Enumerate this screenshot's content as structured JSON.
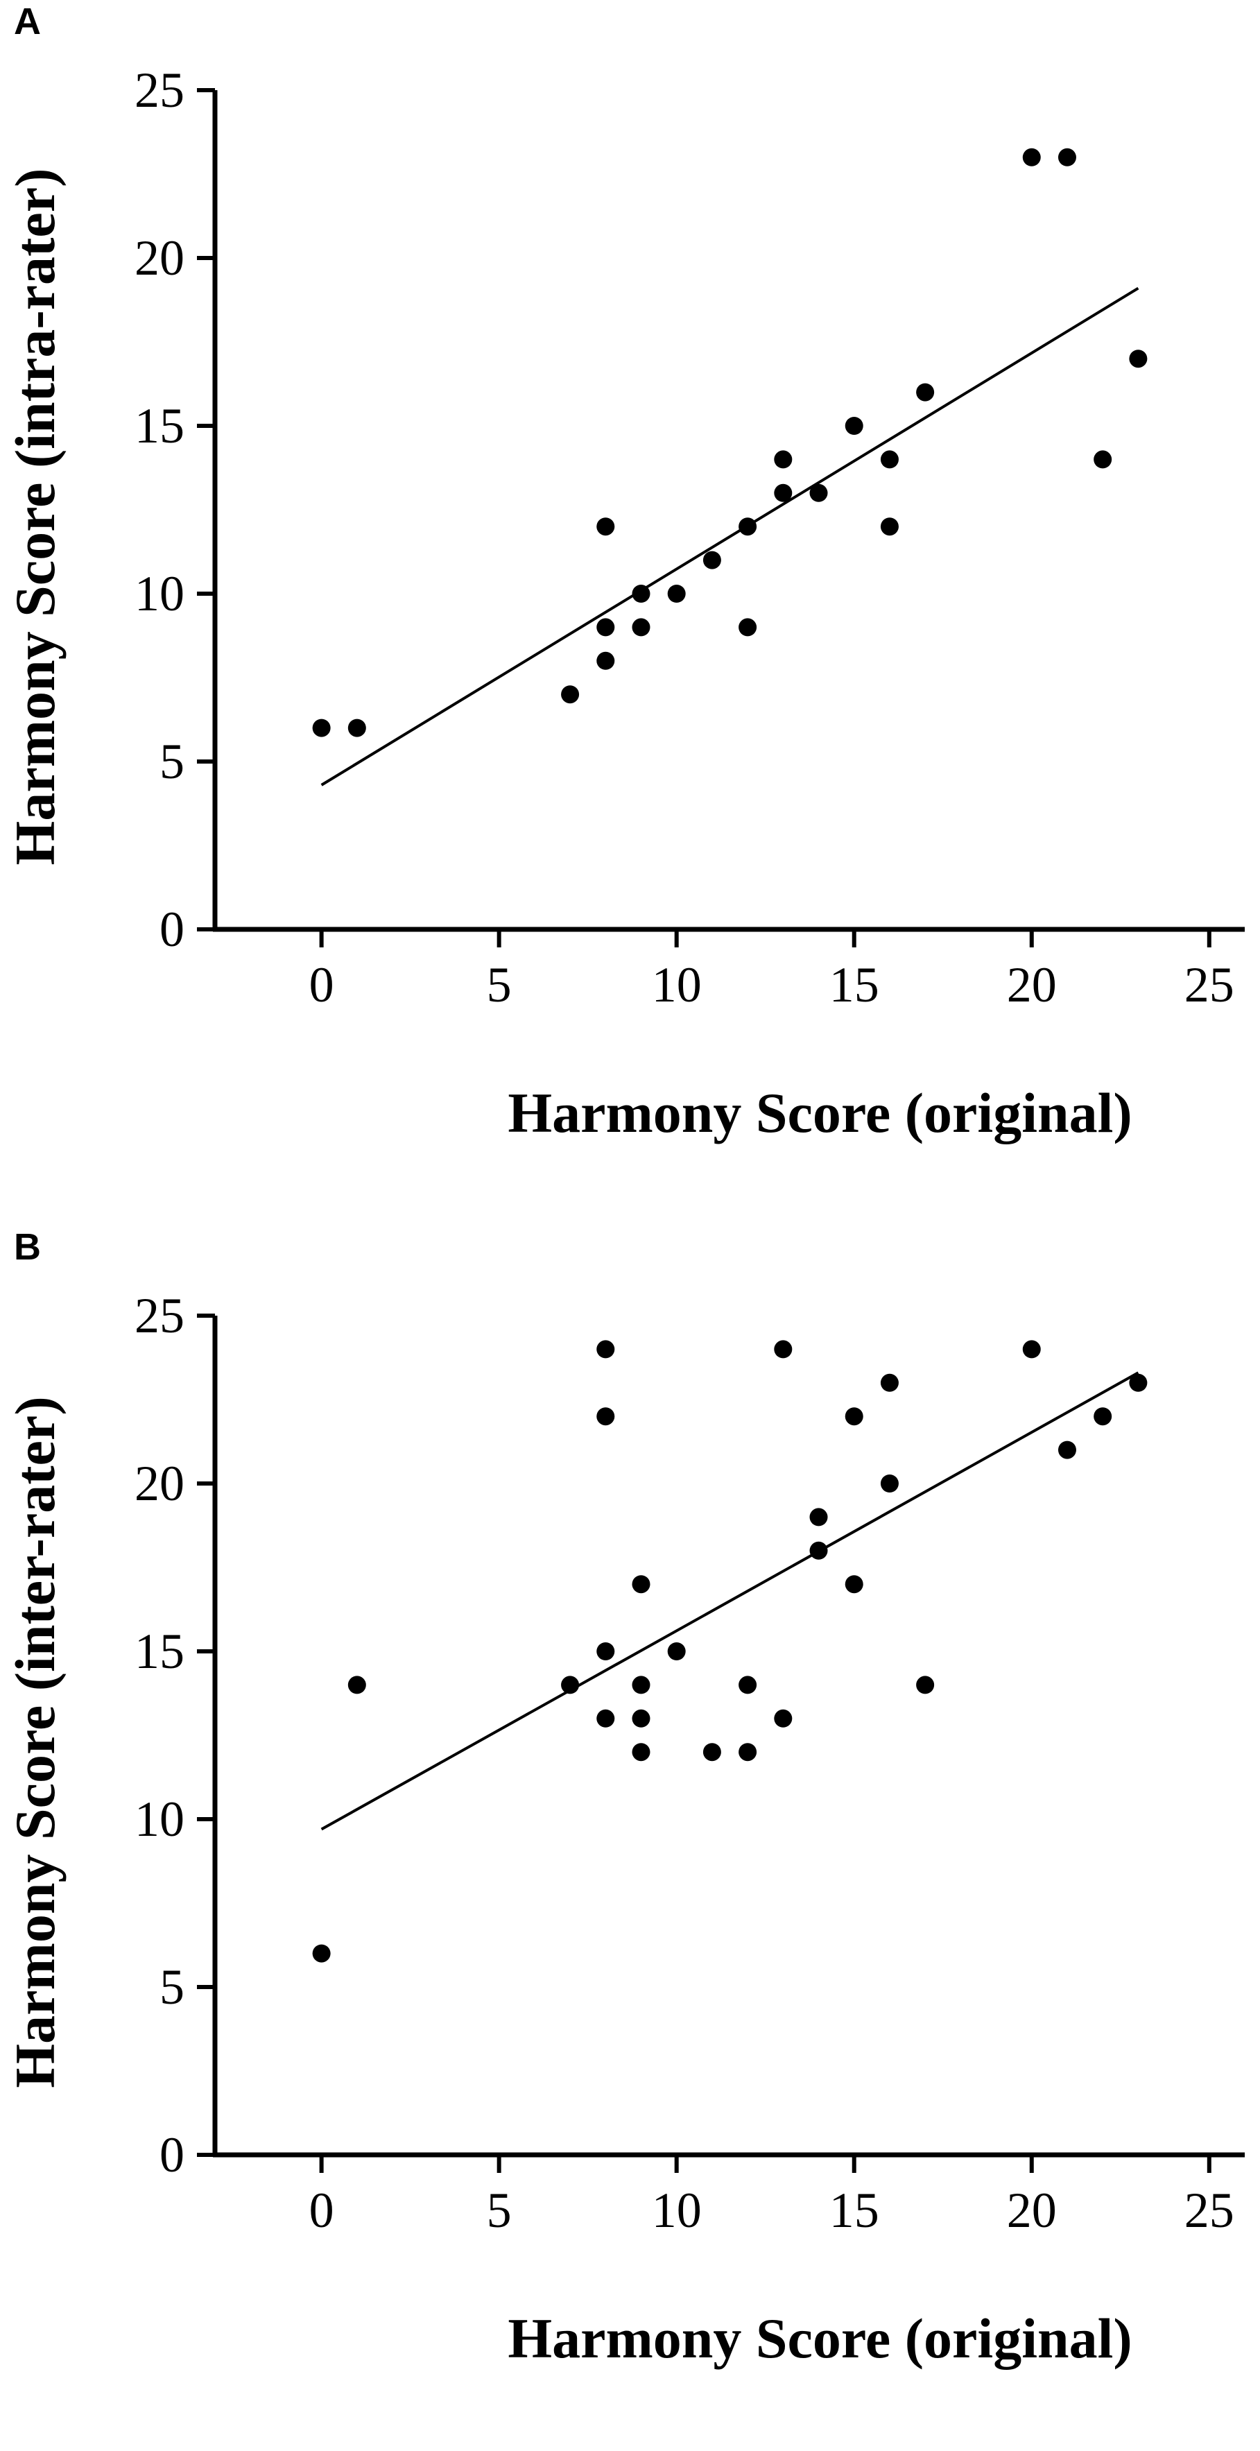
{
  "chart_data": [
    {
      "panel_label": "A",
      "type": "scatter",
      "xlabel": "Harmony Score (original)",
      "ylabel": "Harmony Score (intra-rater)",
      "xlim": [
        -3,
        26
      ],
      "ylim": [
        0,
        25
      ],
      "xticks": [
        0,
        5,
        10,
        15,
        20,
        25
      ],
      "yticks": [
        0,
        5,
        10,
        15,
        20,
        25
      ],
      "grid": false,
      "point_color": "#000000",
      "points": [
        {
          "x": 0,
          "y": 6
        },
        {
          "x": 1,
          "y": 6
        },
        {
          "x": 7,
          "y": 7
        },
        {
          "x": 8,
          "y": 8
        },
        {
          "x": 8,
          "y": 9
        },
        {
          "x": 8,
          "y": 12
        },
        {
          "x": 9,
          "y": 9
        },
        {
          "x": 9,
          "y": 10
        },
        {
          "x": 10,
          "y": 10
        },
        {
          "x": 11,
          "y": 11
        },
        {
          "x": 12,
          "y": 9
        },
        {
          "x": 12,
          "y": 12
        },
        {
          "x": 13,
          "y": 13
        },
        {
          "x": 13,
          "y": 14
        },
        {
          "x": 14,
          "y": 13
        },
        {
          "x": 15,
          "y": 15
        },
        {
          "x": 16,
          "y": 12
        },
        {
          "x": 16,
          "y": 14
        },
        {
          "x": 17,
          "y": 16
        },
        {
          "x": 20,
          "y": 23
        },
        {
          "x": 21,
          "y": 23
        },
        {
          "x": 22,
          "y": 14
        },
        {
          "x": 23,
          "y": 17
        }
      ],
      "fit_line": {
        "x0": 0,
        "y0": 4.3,
        "x1": 23,
        "y1": 19.1
      }
    },
    {
      "panel_label": "B",
      "type": "scatter",
      "xlabel": "Harmony Score (original)",
      "ylabel": "Harmony Score (inter-rater)",
      "xlim": [
        -3,
        26
      ],
      "ylim": [
        0,
        25
      ],
      "xticks": [
        0,
        5,
        10,
        15,
        20,
        25
      ],
      "yticks": [
        0,
        5,
        10,
        15,
        20,
        25
      ],
      "grid": false,
      "point_color": "#000000",
      "points": [
        {
          "x": 0,
          "y": 6
        },
        {
          "x": 1,
          "y": 14
        },
        {
          "x": 7,
          "y": 14
        },
        {
          "x": 8,
          "y": 13
        },
        {
          "x": 8,
          "y": 15
        },
        {
          "x": 8,
          "y": 22
        },
        {
          "x": 8,
          "y": 24
        },
        {
          "x": 9,
          "y": 12
        },
        {
          "x": 9,
          "y": 13
        },
        {
          "x": 9,
          "y": 14
        },
        {
          "x": 9,
          "y": 17
        },
        {
          "x": 10,
          "y": 15
        },
        {
          "x": 11,
          "y": 12
        },
        {
          "x": 12,
          "y": 12
        },
        {
          "x": 12,
          "y": 14
        },
        {
          "x": 13,
          "y": 13
        },
        {
          "x": 13,
          "y": 24
        },
        {
          "x": 14,
          "y": 18
        },
        {
          "x": 14,
          "y": 19
        },
        {
          "x": 15,
          "y": 17
        },
        {
          "x": 15,
          "y": 22
        },
        {
          "x": 16,
          "y": 20
        },
        {
          "x": 16,
          "y": 23
        },
        {
          "x": 17,
          "y": 14
        },
        {
          "x": 20,
          "y": 24
        },
        {
          "x": 21,
          "y": 21
        },
        {
          "x": 22,
          "y": 22
        },
        {
          "x": 23,
          "y": 23
        }
      ],
      "fit_line": {
        "x0": 0,
        "y0": 9.7,
        "x1": 23,
        "y1": 23.3
      }
    }
  ]
}
